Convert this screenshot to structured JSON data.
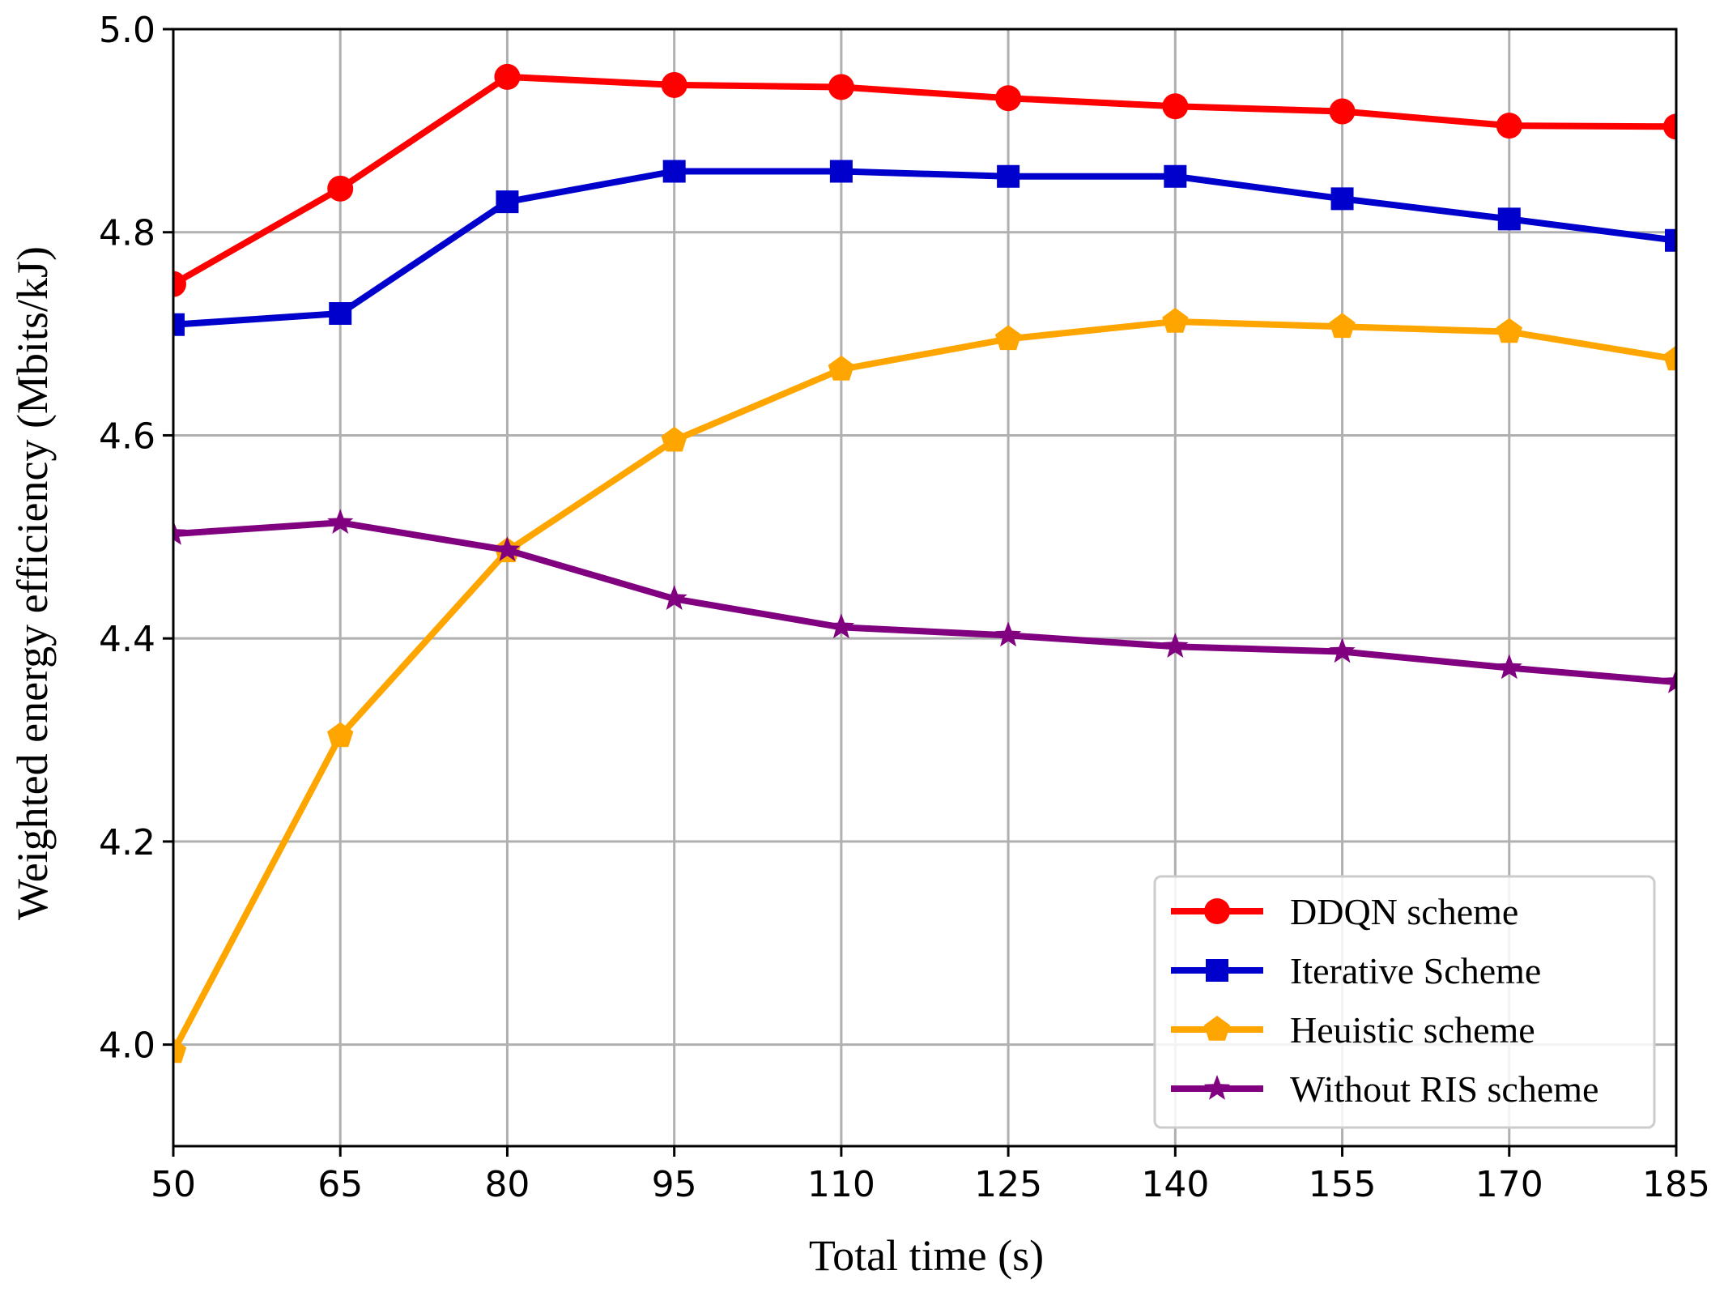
{
  "chart_data": {
    "type": "line",
    "title": "",
    "xlabel": "Total time (s)",
    "ylabel": "Weighted energy efficiency (Mbits/kJ)",
    "x": [
      50,
      65,
      80,
      95,
      110,
      125,
      140,
      155,
      170,
      185
    ],
    "xlim": [
      50,
      185
    ],
    "ylim": [
      3.9,
      5.0
    ],
    "xticks": [
      "50",
      "65",
      "80",
      "95",
      "110",
      "125",
      "140",
      "155",
      "170",
      "185"
    ],
    "yticks": [
      "4.0",
      "4.2",
      "4.4",
      "4.6",
      "4.8",
      "5.0"
    ],
    "grid": true,
    "legend_position": "lower-right",
    "series": [
      {
        "name": "DDQN scheme",
        "color": "#ff0000",
        "marker": "circle",
        "values": [
          4.749,
          4.843,
          4.953,
          4.945,
          4.943,
          4.932,
          4.924,
          4.919,
          4.905,
          4.904
        ]
      },
      {
        "name": "Iterative Scheme",
        "color": "#0000cc",
        "marker": "square",
        "values": [
          4.709,
          4.72,
          4.83,
          4.86,
          4.86,
          4.855,
          4.855,
          4.833,
          4.813,
          4.792
        ]
      },
      {
        "name": "Heuistic scheme",
        "color": "#ffa500",
        "marker": "pentagon",
        "values": [
          3.993,
          4.304,
          4.486,
          4.595,
          4.665,
          4.695,
          4.712,
          4.707,
          4.702,
          4.675
        ]
      },
      {
        "name": "Without RIS scheme",
        "color": "#800080",
        "marker": "star",
        "values": [
          4.503,
          4.514,
          4.487,
          4.439,
          4.411,
          4.403,
          4.392,
          4.387,
          4.371,
          4.357
        ]
      }
    ]
  }
}
